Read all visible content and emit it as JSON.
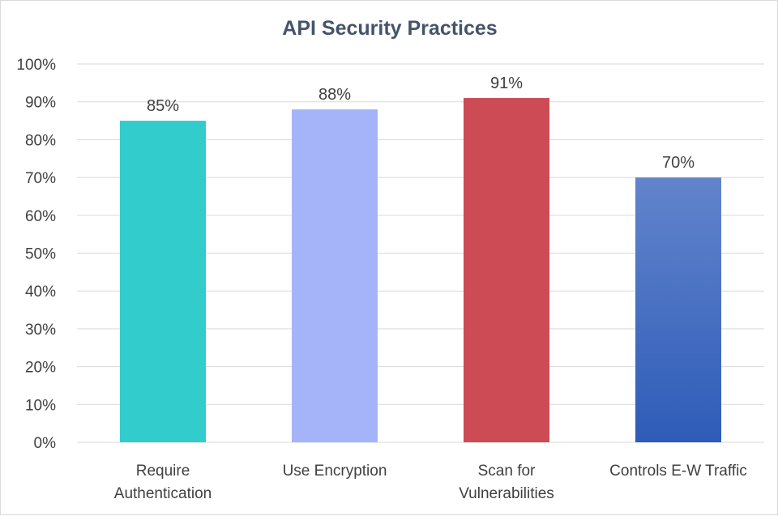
{
  "chart_data": {
    "type": "bar",
    "title": "API Security Practices",
    "categories": [
      [
        "Require",
        "Authentication"
      ],
      [
        "Use Encryption"
      ],
      [
        "Scan for",
        "Vulnerabilities"
      ],
      [
        "Controls E-W Traffic"
      ]
    ],
    "values": [
      85,
      88,
      91,
      70
    ],
    "data_labels": [
      "85%",
      "88%",
      "91%",
      "70%"
    ],
    "bar_colors": [
      [
        "#33cccc",
        "#33cccc"
      ],
      [
        "#a5b4f8",
        "#a5b4f8"
      ],
      [
        "#cc4b55",
        "#cc4b55"
      ],
      [
        "#6284cc",
        "#2e5cb8"
      ]
    ],
    "ylim": [
      0,
      100
    ],
    "yticks": [
      0,
      10,
      20,
      30,
      40,
      50,
      60,
      70,
      80,
      90,
      100
    ],
    "ytick_labels": [
      "0%",
      "10%",
      "20%",
      "30%",
      "40%",
      "50%",
      "60%",
      "70%",
      "80%",
      "90%",
      "100%"
    ],
    "grid": true,
    "legend": "none"
  }
}
